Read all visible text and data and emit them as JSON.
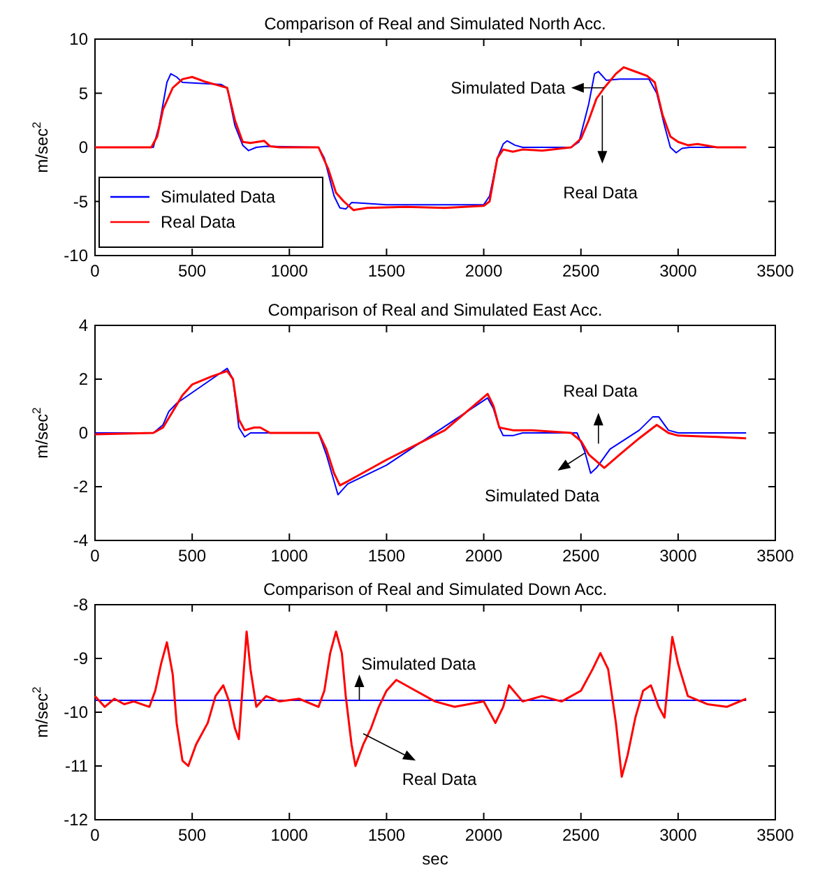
{
  "chart_data": [
    {
      "type": "line",
      "title": "Comparison of Real and Simulated North Acc.",
      "ylabel": "m/sec$^{2}$",
      "xlim": [
        0,
        3500
      ],
      "xticks": [
        0,
        500,
        1000,
        1500,
        2000,
        2500,
        3000,
        3500
      ],
      "ylim": [
        -10,
        10
      ],
      "yticks": [
        -10,
        -5,
        0,
        5,
        10
      ],
      "legend": "bottom left",
      "grid": false,
      "marker": "none",
      "annotations": [
        "Simulated Data",
        "Real Data"
      ],
      "series": [
        {
          "name": "Simulated Data",
          "color": "#0000ff",
          "x": [
            0,
            300,
            330,
            370,
            390,
            420,
            450,
            650,
            680,
            720,
            760,
            790,
            830,
            880,
            1150,
            1180,
            1230,
            1260,
            1290,
            1320,
            1500,
            2000,
            2030,
            2070,
            2100,
            2120,
            2160,
            2200,
            2450,
            2490,
            2540,
            2570,
            2590,
            2630,
            2700,
            2850,
            2890,
            2930,
            2960,
            2990,
            3020,
            3060,
            3350
          ],
          "values": [
            0,
            0,
            2,
            6,
            6.8,
            6.5,
            6,
            5.8,
            5.5,
            2,
            0.2,
            -0.3,
            0,
            0.1,
            0,
            -1,
            -4.5,
            -5.6,
            -5.7,
            -5.1,
            -5.3,
            -5.3,
            -4.5,
            -1,
            0.3,
            0.6,
            0.2,
            0,
            0,
            0.5,
            4,
            6.8,
            7,
            6.2,
            6.3,
            6.3,
            5,
            2,
            0,
            -0.5,
            -0.1,
            0,
            0
          ]
        },
        {
          "name": "Real Data",
          "color": "#ff0000",
          "x": [
            0,
            290,
            320,
            350,
            400,
            450,
            500,
            560,
            620,
            680,
            720,
            760,
            800,
            870,
            900,
            950,
            1150,
            1200,
            1240,
            1280,
            1330,
            1400,
            1600,
            1800,
            2000,
            2030,
            2070,
            2100,
            2150,
            2200,
            2300,
            2450,
            2500,
            2540,
            2580,
            2620,
            2680,
            2720,
            2780,
            2840,
            2880,
            2920,
            2960,
            3000,
            3050,
            3100,
            3200,
            3350
          ],
          "values": [
            0,
            0,
            1,
            3.5,
            5.5,
            6.3,
            6.5,
            6.1,
            5.8,
            5.5,
            2.5,
            0.5,
            0.4,
            0.6,
            0.1,
            0,
            0,
            -2,
            -4.2,
            -5,
            -5.8,
            -5.6,
            -5.5,
            -5.6,
            -5.4,
            -5,
            -1,
            -0.2,
            -0.4,
            -0.2,
            -0.3,
            0,
            0.8,
            2.5,
            4.5,
            5.5,
            6.8,
            7.4,
            7,
            6.6,
            6,
            3,
            1,
            0.5,
            0.2,
            0.3,
            0,
            0
          ]
        }
      ]
    },
    {
      "type": "line",
      "title": "Comparison of Real and Simulated East Acc.",
      "ylabel": "m/sec$^{2}$",
      "xlim": [
        0,
        3500
      ],
      "xticks": [
        0,
        500,
        1000,
        1500,
        2000,
        2500,
        3000,
        3500
      ],
      "ylim": [
        -4,
        4
      ],
      "yticks": [
        -4,
        -2,
        0,
        2,
        4
      ],
      "legend": false,
      "grid": false,
      "marker": "none",
      "annotations": [
        "Real Data",
        "Simulated Data"
      ],
      "series": [
        {
          "color": "#0000ff",
          "x": [
            0,
            300,
            350,
            380,
            420,
            500,
            600,
            680,
            710,
            740,
            770,
            800,
            1150,
            1190,
            1230,
            1250,
            1300,
            1500,
            2020,
            2050,
            2080,
            2100,
            2150,
            2200,
            2480,
            2520,
            2550,
            2580,
            2650,
            2800,
            2870,
            2900,
            2950,
            3000,
            3350
          ],
          "values": [
            0,
            0,
            0.3,
            0.8,
            1.1,
            1.5,
            2,
            2.4,
            2,
            0.2,
            -0.15,
            0,
            0,
            -0.8,
            -1.8,
            -2.3,
            -1.9,
            -1.2,
            1.3,
            0.9,
            0.2,
            -0.1,
            -0.1,
            0,
            0,
            -0.7,
            -1.5,
            -1.3,
            -0.6,
            0.1,
            0.6,
            0.6,
            0.1,
            0,
            0
          ]
        },
        {
          "color": "#ff0000",
          "x": [
            0,
            300,
            350,
            400,
            450,
            500,
            600,
            680,
            710,
            740,
            770,
            820,
            850,
            900,
            1150,
            1190,
            1230,
            1260,
            1300,
            1500,
            1800,
            2020,
            2050,
            2080,
            2150,
            2250,
            2450,
            2500,
            2540,
            2620,
            2700,
            2800,
            2890,
            2950,
            3000,
            3200,
            3350
          ],
          "values": [
            -0.05,
            0,
            0.2,
            0.8,
            1.4,
            1.8,
            2.1,
            2.3,
            2,
            0.5,
            0.1,
            0.2,
            0.2,
            0,
            0,
            -0.6,
            -1.5,
            -1.95,
            -1.8,
            -1,
            0.1,
            1.45,
            1,
            0.2,
            0.1,
            0.1,
            0,
            -0.3,
            -0.8,
            -1.3,
            -0.8,
            -0.2,
            0.3,
            0,
            -0.1,
            -0.15,
            -0.2
          ]
        }
      ]
    },
    {
      "type": "line",
      "title": "Comparison of Real and Simulated Down Acc.",
      "xlabel": "sec",
      "ylabel": "m/sec$^{2}$",
      "xlim": [
        0,
        3500
      ],
      "xticks": [
        0,
        500,
        1000,
        1500,
        2000,
        2500,
        3000,
        3500
      ],
      "ylim": [
        -12,
        -8
      ],
      "yticks": [
        -12,
        -11,
        -10,
        -9,
        -8
      ],
      "legend": false,
      "grid": false,
      "marker": "none",
      "annotations": [
        "Simulated Data",
        "Real Data"
      ],
      "series": [
        {
          "color": "#0000ff",
          "x": [
            0,
            3350
          ],
          "values": [
            -9.78,
            -9.78
          ]
        },
        {
          "color": "#ff0000",
          "x": [
            0,
            50,
            100,
            150,
            200,
            280,
            310,
            340,
            370,
            400,
            420,
            450,
            480,
            520,
            580,
            620,
            660,
            690,
            720,
            740,
            760,
            780,
            800,
            830,
            880,
            950,
            1050,
            1150,
            1180,
            1210,
            1240,
            1270,
            1290,
            1320,
            1340,
            1380,
            1420,
            1460,
            1500,
            1550,
            1650,
            1750,
            1850,
            2000,
            2060,
            2100,
            2130,
            2200,
            2300,
            2400,
            2500,
            2560,
            2600,
            2640,
            2680,
            2710,
            2740,
            2780,
            2820,
            2860,
            2900,
            2930,
            2970,
            3000,
            3050,
            3150,
            3250,
            3350
          ],
          "values": [
            -9.7,
            -9.9,
            -9.75,
            -9.85,
            -9.8,
            -9.9,
            -9.6,
            -9.1,
            -8.7,
            -9.3,
            -10.2,
            -10.9,
            -11,
            -10.6,
            -10.2,
            -9.7,
            -9.5,
            -9.8,
            -10.3,
            -10.5,
            -9.5,
            -8.5,
            -9.2,
            -9.9,
            -9.7,
            -9.8,
            -9.75,
            -9.9,
            -9.6,
            -8.9,
            -8.5,
            -8.9,
            -9.7,
            -10.6,
            -11,
            -10.6,
            -10.3,
            -9.9,
            -9.6,
            -9.4,
            -9.6,
            -9.8,
            -9.9,
            -9.8,
            -10.2,
            -9.9,
            -9.5,
            -9.8,
            -9.7,
            -9.8,
            -9.6,
            -9.2,
            -8.9,
            -9.2,
            -10.2,
            -11.2,
            -10.8,
            -10.1,
            -9.6,
            -9.5,
            -9.9,
            -10.1,
            -8.6,
            -9.1,
            -9.7,
            -9.85,
            -9.9,
            -9.75
          ]
        }
      ]
    }
  ]
}
